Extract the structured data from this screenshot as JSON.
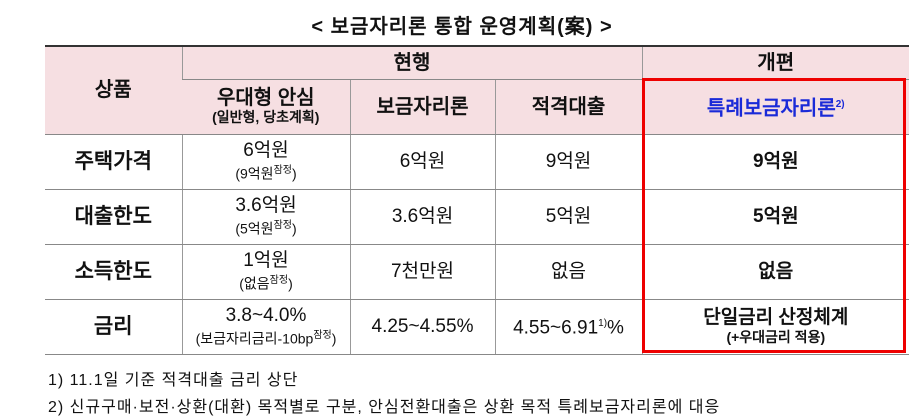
{
  "title": "< 보금자리론 통합 운영계획(案) >",
  "table": {
    "header": {
      "product": "상품",
      "current": "현행",
      "reform": "개편",
      "columns": [
        {
          "main": "우대형 안심",
          "sub": "(일반형, 당초계획)"
        },
        {
          "main": "보금자리론"
        },
        {
          "main": "적격대출"
        },
        {
          "main": "특례보금자리론",
          "sup": "2)"
        }
      ]
    },
    "rows": [
      {
        "label": "주택가격",
        "cells": [
          {
            "main": "6억원",
            "sub": "(9억원",
            "sup": "잠정",
            "close": ")"
          },
          {
            "main": "6억원"
          },
          {
            "main": "9억원"
          },
          {
            "main": "9억원"
          }
        ]
      },
      {
        "label": "대출한도",
        "cells": [
          {
            "main": "3.6억원",
            "sub": "(5억원",
            "sup": "잠정",
            "close": ")"
          },
          {
            "main": "3.6억원"
          },
          {
            "main": "5억원"
          },
          {
            "main": "5억원"
          }
        ]
      },
      {
        "label": "소득한도",
        "cells": [
          {
            "main": "1억원",
            "sub": "(없음",
            "sup": "잠정",
            "close": ")"
          },
          {
            "main": "7천만원"
          },
          {
            "main": "없음"
          },
          {
            "main": "없음"
          }
        ]
      },
      {
        "label": "금리",
        "cells": [
          {
            "main": "3.8~4.0%",
            "sub": "(보금자리금리-10bp",
            "sup": "잠정",
            "close": ")"
          },
          {
            "main": "4.25~4.55%"
          },
          {
            "main": "4.55~6.91",
            "sup": "1)",
            "close": "%"
          },
          {
            "main": "단일금리 산정체계",
            "sub": "(+우대금리 적용)"
          }
        ]
      }
    ]
  },
  "footnotes": [
    "1) 11.1일 기준 적격대출 금리 상단",
    "2) 신규구매·보전·상환(대환) 목적별로 구분, 안심전환대출은 상환 목적 특례보금자리론에 대응"
  ]
}
